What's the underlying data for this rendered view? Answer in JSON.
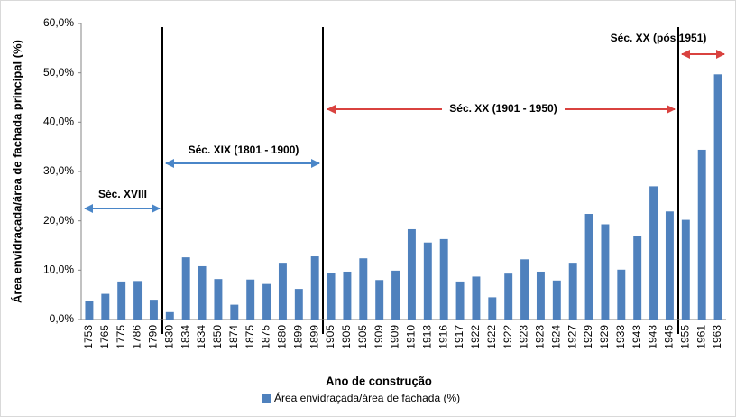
{
  "chart_data": {
    "type": "bar",
    "categories": [
      "1753",
      "1765",
      "1775",
      "1786",
      "1790",
      "1830",
      "1834",
      "1834",
      "1850",
      "1874",
      "1875",
      "1875",
      "1880",
      "1899",
      "1899",
      "1905",
      "1905",
      "1905",
      "1909",
      "1909",
      "1910",
      "1913",
      "1916",
      "1917",
      "1922",
      "1922",
      "1922",
      "1923",
      "1923",
      "1924",
      "1927",
      "1929",
      "1929",
      "1933",
      "1943",
      "1943",
      "1945",
      "1955",
      "1961",
      "1963"
    ],
    "series": [
      {
        "name": "Área envidraçada/área de fachada (%)",
        "color": "#4f81bd",
        "values": [
          3.7,
          5.2,
          7.7,
          7.8,
          4.0,
          1.5,
          12.6,
          10.8,
          8.2,
          3.0,
          8.1,
          7.2,
          11.5,
          6.2,
          12.8,
          9.5,
          9.7,
          12.4,
          8.0,
          9.9,
          18.3,
          15.6,
          16.3,
          7.7,
          8.7,
          4.5,
          9.3,
          12.2,
          9.7,
          7.9,
          11.5,
          21.4,
          19.3,
          10.1,
          17.0,
          27.0,
          21.9,
          20.2,
          34.4,
          49.7
        ]
      }
    ],
    "ylim": [
      0,
      60
    ],
    "yticks": [
      {
        "value": 0,
        "label": "0,0%"
      },
      {
        "value": 10,
        "label": "10,0%"
      },
      {
        "value": 20,
        "label": "20,0%"
      },
      {
        "value": 30,
        "label": "30,0%"
      },
      {
        "value": 40,
        "label": "40,0%"
      },
      {
        "value": 50,
        "label": "50,0%"
      },
      {
        "value": 60,
        "label": "60,0%"
      }
    ],
    "xlabel": "Ano de construção",
    "ylabel": "Área envidraçada/área de fachada principal (%)",
    "annotations": [
      "Séc. XVIII",
      "Séc. XIX (1801 - 1900)",
      "Séc. XX (1901 - 1950)",
      "Séc. XX (pós 1951)"
    ],
    "legend": "bottom"
  }
}
